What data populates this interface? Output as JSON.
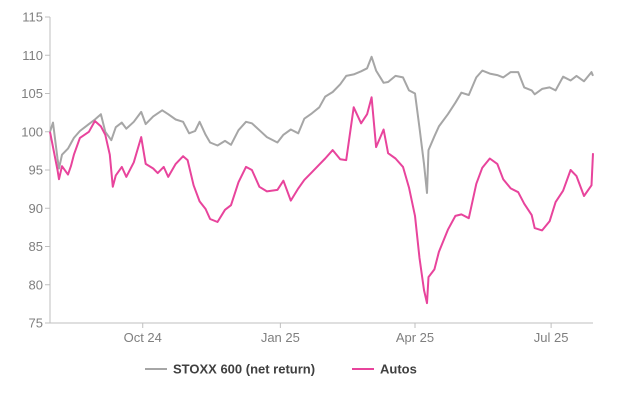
{
  "chart_data": {
    "type": "line",
    "title": "",
    "xlabel": "",
    "ylabel": "",
    "ylim": [
      75,
      115
    ],
    "y_ticks": [
      75,
      80,
      85,
      90,
      95,
      100,
      105,
      110,
      115
    ],
    "x_ticks": [
      {
        "label": "Oct 24",
        "date": "2024-10-01"
      },
      {
        "label": "Jan 25",
        "date": "2025-01-01"
      },
      {
        "label": "Apr 25",
        "date": "2025-04-01"
      },
      {
        "label": "Jul 25",
        "date": "2025-07-01"
      }
    ],
    "x_range": [
      "2024-07-31",
      "2025-07-29"
    ],
    "grid": false,
    "legend": "bottom",
    "series": [
      {
        "name": "STOXX 600 (net return)",
        "color": "#a6a6a6",
        "points": [
          [
            "2024-07-31",
            100.0
          ],
          [
            "2024-08-02",
            101.2
          ],
          [
            "2024-08-05",
            96.5
          ],
          [
            "2024-08-06",
            95.2
          ],
          [
            "2024-08-08",
            97.0
          ],
          [
            "2024-08-12",
            97.8
          ],
          [
            "2024-08-16",
            99.2
          ],
          [
            "2024-08-20",
            100.1
          ],
          [
            "2024-08-26",
            101.0
          ],
          [
            "2024-08-30",
            101.6
          ],
          [
            "2024-09-03",
            102.3
          ],
          [
            "2024-09-06",
            100.0
          ],
          [
            "2024-09-10",
            98.9
          ],
          [
            "2024-09-13",
            100.6
          ],
          [
            "2024-09-17",
            101.2
          ],
          [
            "2024-09-20",
            100.4
          ],
          [
            "2024-09-25",
            101.3
          ],
          [
            "2024-09-30",
            102.6
          ],
          [
            "2024-10-03",
            101.0
          ],
          [
            "2024-10-08",
            102.0
          ],
          [
            "2024-10-14",
            102.8
          ],
          [
            "2024-10-18",
            102.3
          ],
          [
            "2024-10-23",
            101.6
          ],
          [
            "2024-10-28",
            101.3
          ],
          [
            "2024-11-01",
            99.8
          ],
          [
            "2024-11-05",
            100.1
          ],
          [
            "2024-11-08",
            101.3
          ],
          [
            "2024-11-12",
            99.6
          ],
          [
            "2024-11-15",
            98.6
          ],
          [
            "2024-11-20",
            98.2
          ],
          [
            "2024-11-25",
            98.8
          ],
          [
            "2024-11-29",
            98.3
          ],
          [
            "2024-12-04",
            100.2
          ],
          [
            "2024-12-09",
            101.3
          ],
          [
            "2024-12-13",
            101.1
          ],
          [
            "2024-12-18",
            100.2
          ],
          [
            "2024-12-23",
            99.3
          ],
          [
            "2024-12-30",
            98.6
          ],
          [
            "2025-01-03",
            99.6
          ],
          [
            "2025-01-08",
            100.3
          ],
          [
            "2025-01-13",
            99.8
          ],
          [
            "2025-01-17",
            101.7
          ],
          [
            "2025-01-22",
            102.4
          ],
          [
            "2025-01-27",
            103.2
          ],
          [
            "2025-01-31",
            104.6
          ],
          [
            "2025-02-05",
            105.2
          ],
          [
            "2025-02-10",
            106.2
          ],
          [
            "2025-02-14",
            107.3
          ],
          [
            "2025-02-19",
            107.5
          ],
          [
            "2025-02-24",
            107.9
          ],
          [
            "2025-02-28",
            108.3
          ],
          [
            "2025-03-03",
            109.8
          ],
          [
            "2025-03-06",
            108.0
          ],
          [
            "2025-03-11",
            106.4
          ],
          [
            "2025-03-14",
            106.5
          ],
          [
            "2025-03-19",
            107.3
          ],
          [
            "2025-03-24",
            107.1
          ],
          [
            "2025-03-28",
            105.4
          ],
          [
            "2025-04-01",
            105.0
          ],
          [
            "2025-04-04",
            100.5
          ],
          [
            "2025-04-07",
            95.8
          ],
          [
            "2025-04-09",
            92.0
          ],
          [
            "2025-04-10",
            97.6
          ],
          [
            "2025-04-14",
            99.4
          ],
          [
            "2025-04-17",
            100.7
          ],
          [
            "2025-04-23",
            102.3
          ],
          [
            "2025-04-28",
            103.8
          ],
          [
            "2025-05-02",
            105.1
          ],
          [
            "2025-05-07",
            104.8
          ],
          [
            "2025-05-12",
            107.1
          ],
          [
            "2025-05-16",
            108.0
          ],
          [
            "2025-05-21",
            107.6
          ],
          [
            "2025-05-26",
            107.4
          ],
          [
            "2025-05-30",
            107.1
          ],
          [
            "2025-06-04",
            107.8
          ],
          [
            "2025-06-09",
            107.8
          ],
          [
            "2025-06-13",
            105.8
          ],
          [
            "2025-06-18",
            105.4
          ],
          [
            "2025-06-20",
            104.9
          ],
          [
            "2025-06-25",
            105.6
          ],
          [
            "2025-06-30",
            105.8
          ],
          [
            "2025-07-04",
            105.4
          ],
          [
            "2025-07-09",
            107.2
          ],
          [
            "2025-07-14",
            106.7
          ],
          [
            "2025-07-18",
            107.3
          ],
          [
            "2025-07-23",
            106.6
          ],
          [
            "2025-07-28",
            107.8
          ],
          [
            "2025-07-29",
            107.3
          ]
        ]
      },
      {
        "name": "Autos",
        "color": "#e8449c",
        "points": [
          [
            "2024-07-31",
            100.0
          ],
          [
            "2024-08-02",
            98.0
          ],
          [
            "2024-08-05",
            95.0
          ],
          [
            "2024-08-06",
            93.8
          ],
          [
            "2024-08-08",
            95.5
          ],
          [
            "2024-08-12",
            94.4
          ],
          [
            "2024-08-14",
            95.5
          ],
          [
            "2024-08-16",
            97.0
          ],
          [
            "2024-08-20",
            99.2
          ],
          [
            "2024-08-26",
            100.0
          ],
          [
            "2024-08-30",
            101.4
          ],
          [
            "2024-09-03",
            100.7
          ],
          [
            "2024-09-06",
            99.6
          ],
          [
            "2024-09-09",
            97.0
          ],
          [
            "2024-09-11",
            92.8
          ],
          [
            "2024-09-13",
            94.3
          ],
          [
            "2024-09-17",
            95.4
          ],
          [
            "2024-09-20",
            94.1
          ],
          [
            "2024-09-25",
            96.0
          ],
          [
            "2024-09-30",
            99.3
          ],
          [
            "2024-10-03",
            95.8
          ],
          [
            "2024-10-08",
            95.2
          ],
          [
            "2024-10-11",
            94.6
          ],
          [
            "2024-10-15",
            95.4
          ],
          [
            "2024-10-18",
            94.1
          ],
          [
            "2024-10-23",
            95.8
          ],
          [
            "2024-10-28",
            96.8
          ],
          [
            "2024-10-31",
            96.3
          ],
          [
            "2024-11-04",
            93.0
          ],
          [
            "2024-11-08",
            90.9
          ],
          [
            "2024-11-12",
            89.9
          ],
          [
            "2024-11-15",
            88.6
          ],
          [
            "2024-11-20",
            88.2
          ],
          [
            "2024-11-25",
            89.8
          ],
          [
            "2024-11-29",
            90.4
          ],
          [
            "2024-12-04",
            93.4
          ],
          [
            "2024-12-09",
            95.4
          ],
          [
            "2024-12-13",
            95.0
          ],
          [
            "2024-12-18",
            92.8
          ],
          [
            "2024-12-23",
            92.2
          ],
          [
            "2024-12-30",
            92.4
          ],
          [
            "2025-01-03",
            93.6
          ],
          [
            "2025-01-08",
            91.0
          ],
          [
            "2025-01-13",
            92.6
          ],
          [
            "2025-01-17",
            93.7
          ],
          [
            "2025-01-22",
            94.7
          ],
          [
            "2025-01-27",
            95.7
          ],
          [
            "2025-01-31",
            96.5
          ],
          [
            "2025-02-05",
            97.6
          ],
          [
            "2025-02-10",
            96.4
          ],
          [
            "2025-02-14",
            96.3
          ],
          [
            "2025-02-19",
            103.2
          ],
          [
            "2025-02-24",
            101.1
          ],
          [
            "2025-02-28",
            102.3
          ],
          [
            "2025-03-03",
            104.5
          ],
          [
            "2025-03-06",
            98.0
          ],
          [
            "2025-03-11",
            100.3
          ],
          [
            "2025-03-14",
            97.2
          ],
          [
            "2025-03-19",
            96.5
          ],
          [
            "2025-03-24",
            95.4
          ],
          [
            "2025-03-28",
            92.7
          ],
          [
            "2025-04-01",
            89.0
          ],
          [
            "2025-04-04",
            83.5
          ],
          [
            "2025-04-07",
            79.3
          ],
          [
            "2025-04-09",
            77.6
          ],
          [
            "2025-04-10",
            81.0
          ],
          [
            "2025-04-14",
            82.0
          ],
          [
            "2025-04-17",
            84.3
          ],
          [
            "2025-04-23",
            87.2
          ],
          [
            "2025-04-28",
            89.0
          ],
          [
            "2025-05-02",
            89.2
          ],
          [
            "2025-05-07",
            88.7
          ],
          [
            "2025-05-12",
            93.2
          ],
          [
            "2025-05-16",
            95.3
          ],
          [
            "2025-05-21",
            96.5
          ],
          [
            "2025-05-26",
            95.8
          ],
          [
            "2025-05-30",
            93.8
          ],
          [
            "2025-06-04",
            92.6
          ],
          [
            "2025-06-09",
            92.1
          ],
          [
            "2025-06-13",
            90.6
          ],
          [
            "2025-06-18",
            89.1
          ],
          [
            "2025-06-20",
            87.4
          ],
          [
            "2025-06-25",
            87.1
          ],
          [
            "2025-06-30",
            88.3
          ],
          [
            "2025-07-04",
            90.8
          ],
          [
            "2025-07-09",
            92.3
          ],
          [
            "2025-07-14",
            95.0
          ],
          [
            "2025-07-18",
            94.2
          ],
          [
            "2025-07-23",
            91.6
          ],
          [
            "2025-07-28",
            93.0
          ],
          [
            "2025-07-29",
            97.2
          ]
        ]
      }
    ]
  }
}
